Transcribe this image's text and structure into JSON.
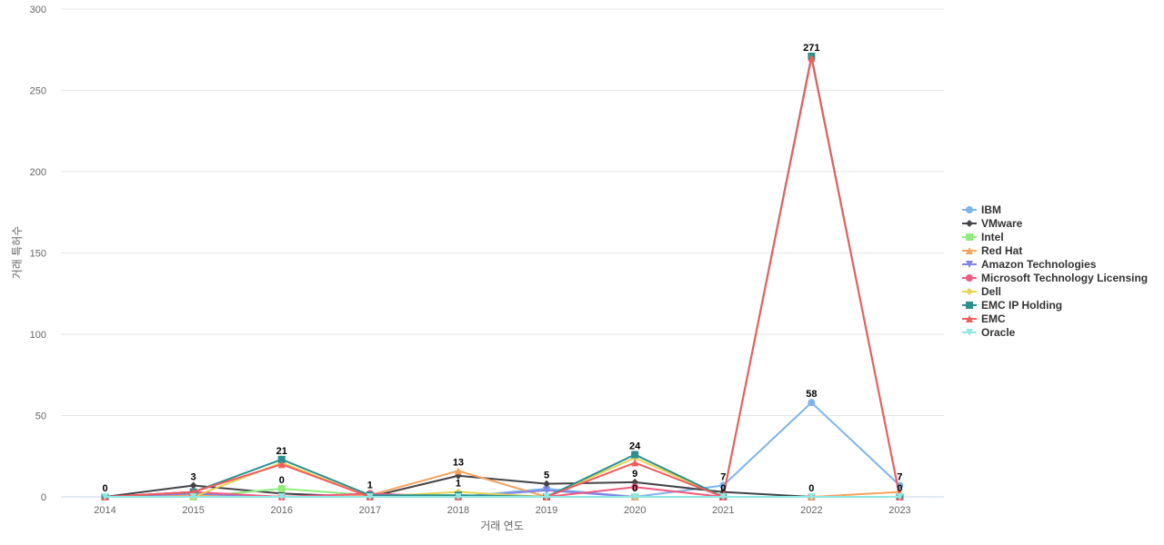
{
  "chart_data": {
    "type": "line",
    "title": "",
    "xlabel": "거래 연도",
    "ylabel": "거래 특허수",
    "ylim": [
      0,
      300
    ],
    "yticks": [
      0,
      50,
      100,
      150,
      200,
      250,
      300
    ],
    "grid": true,
    "legend_position": "right",
    "x": [
      "2014",
      "2015",
      "2016",
      "2017",
      "2018",
      "2019",
      "2020",
      "2021",
      "2022",
      "2023"
    ],
    "series": [
      {
        "name": "IBM",
        "color": "#7cb5ec",
        "marker": "circle",
        "values": [
          0,
          0,
          0,
          0,
          0,
          5,
          0,
          7,
          58,
          7
        ]
      },
      {
        "name": "VMware",
        "color": "#434348",
        "marker": "diamond",
        "values": [
          0,
          7,
          2,
          0,
          13,
          8,
          9,
          3,
          0,
          0
        ]
      },
      {
        "name": "Intel",
        "color": "#90ed7d",
        "marker": "square",
        "values": [
          0,
          0,
          5,
          1,
          1,
          0,
          0,
          0,
          0,
          0
        ]
      },
      {
        "name": "Red Hat",
        "color": "#f7a35c",
        "marker": "triangle",
        "values": [
          0,
          1,
          0,
          1,
          16,
          0,
          0,
          0,
          0,
          3
        ]
      },
      {
        "name": "Amazon Technologies",
        "color": "#8085e9",
        "marker": "triangle-down",
        "values": [
          0,
          2,
          0,
          0,
          0,
          4,
          0,
          0,
          0,
          0
        ]
      },
      {
        "name": "Microsoft Technology Licensing",
        "color": "#f15c80",
        "marker": "circle",
        "values": [
          0,
          3,
          0,
          2,
          0,
          0,
          6,
          0,
          0,
          0
        ]
      },
      {
        "name": "Dell",
        "color": "#e4d354",
        "marker": "diamond",
        "values": [
          0,
          0,
          21,
          0,
          3,
          0,
          24,
          0,
          0,
          0
        ]
      },
      {
        "name": "EMC IP Holding",
        "color": "#2b908f",
        "marker": "square",
        "values": [
          0,
          3,
          23,
          1,
          1,
          0,
          26,
          0,
          271,
          0
        ]
      },
      {
        "name": "EMC",
        "color": "#f45b5b",
        "marker": "triangle",
        "values": [
          0,
          3,
          20,
          0,
          0,
          0,
          21,
          0,
          270,
          0
        ]
      },
      {
        "name": "Oracle",
        "color": "#91e8e1",
        "marker": "triangle-down",
        "values": [
          0,
          0,
          0,
          0,
          0,
          0,
          0,
          0,
          0,
          0
        ]
      }
    ],
    "data_labels": [
      {
        "x": "2014",
        "text": "0",
        "y": 0
      },
      {
        "x": "2015",
        "text": "3",
        "y": 7
      },
      {
        "x": "2016",
        "text": "21",
        "y": 23
      },
      {
        "x": "2016",
        "text": "0",
        "y": 5
      },
      {
        "x": "2017",
        "text": "1",
        "y": 2
      },
      {
        "x": "2018",
        "text": "13",
        "y": 16
      },
      {
        "x": "2018",
        "text": "1",
        "y": 3
      },
      {
        "x": "2019",
        "text": "5",
        "y": 8
      },
      {
        "x": "2020",
        "text": "24",
        "y": 26
      },
      {
        "x": "2020",
        "text": "9",
        "y": 9
      },
      {
        "x": "2020",
        "text": "0",
        "y": 0
      },
      {
        "x": "2021",
        "text": "7",
        "y": 7
      },
      {
        "x": "2021",
        "text": "0",
        "y": 0
      },
      {
        "x": "2022",
        "text": "271",
        "y": 271
      },
      {
        "x": "2022",
        "text": "58",
        "y": 58
      },
      {
        "x": "2022",
        "text": "0",
        "y": 0
      },
      {
        "x": "2023",
        "text": "7",
        "y": 7
      },
      {
        "x": "2023",
        "text": "0",
        "y": 0
      }
    ]
  }
}
